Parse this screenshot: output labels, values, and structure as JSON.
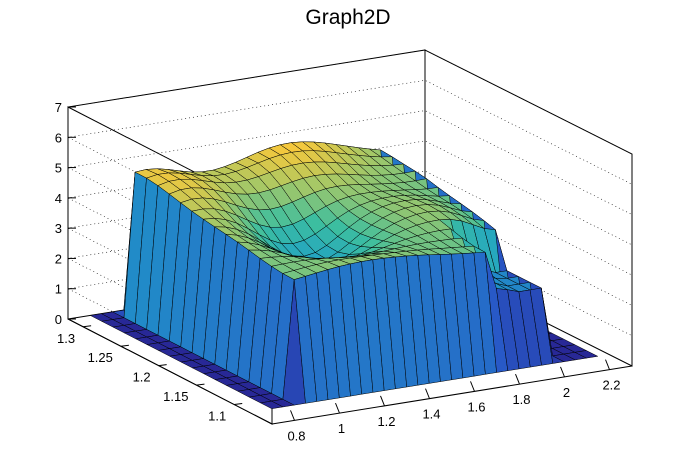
{
  "chart_data": {
    "type": "surface",
    "title": "Graph2D",
    "xlabel": "",
    "ylabel": "",
    "zlabel": "",
    "grid": true,
    "colormap": "viridis-like",
    "xlim": [
      0.7,
      2.3
    ],
    "ylim": [
      1.05,
      1.32
    ],
    "zlim": [
      0,
      7
    ],
    "x_ticks": [
      "0.8",
      "1",
      "1.2",
      "1.4",
      "1.6",
      "1.8",
      "2",
      "2.2"
    ],
    "y_ticks": [
      "1.1",
      "1.15",
      "1.2",
      "1.25",
      "1.3"
    ],
    "z_ticks": [
      "0",
      "1",
      "2",
      "3",
      "4",
      "5",
      "6",
      "7"
    ],
    "grid_x": [
      0.8,
      0.85,
      0.9,
      0.95,
      1.0,
      1.05,
      1.1,
      1.15,
      1.2,
      1.25,
      1.3,
      1.35,
      1.4,
      1.45,
      1.5,
      1.55,
      1.6,
      1.65,
      1.7,
      1.75,
      1.8,
      1.85,
      1.9,
      1.95,
      2.0,
      2.05,
      2.1,
      2.15,
      2.2,
      2.25
    ],
    "grid_y": [
      1.08,
      1.095,
      1.11,
      1.125,
      1.14,
      1.155,
      1.17,
      1.185,
      1.2,
      1.215,
      1.23,
      1.245,
      1.26,
      1.275,
      1.29,
      1.305,
      1.32
    ],
    "surface_description": "Plateau of height about 3.5 to 5.3 over x between 0.95 and 2.05 and y between 1.1 and 1.3, dropping to 0 elsewhere; peaks near 5.3 at the back corners"
  }
}
